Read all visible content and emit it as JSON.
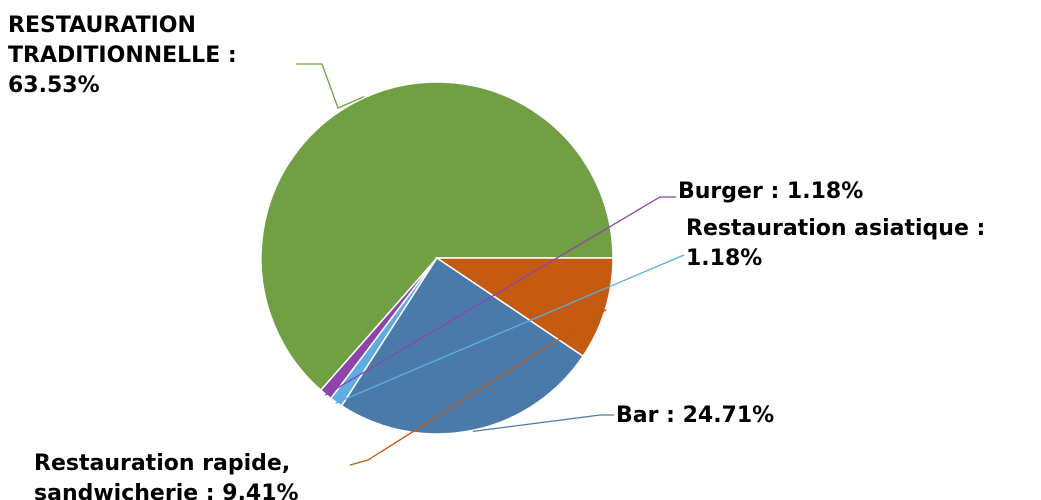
{
  "chart_data": {
    "type": "pie",
    "title": "",
    "legend": "none",
    "slices": [
      {
        "name": "RESTAURATION TRADITIONNELLE",
        "value": 63.53,
        "color": "#70a043",
        "label_lines": [
          "RESTAURATION",
          "TRADITIONNELLE :",
          "63.53%"
        ]
      },
      {
        "name": "Burger",
        "value": 1.18,
        "color": "#8e44ad",
        "label_lines": [
          "Burger : 1.18%"
        ]
      },
      {
        "name": "Restauration asiatique",
        "value": 1.18,
        "color": "#5dade2",
        "label_lines": [
          "Restauration asiatique :",
          "1.18%"
        ]
      },
      {
        "name": "Bar",
        "value": 24.71,
        "color": "#4a7aaa",
        "label_lines": [
          "Bar : 24.71%"
        ]
      },
      {
        "name": "Restauration rapide, sandwicherie",
        "value": 9.41,
        "color": "#c55a11",
        "label_lines": [
          "Restauration rapide,",
          "sandwicherie : 9.41%"
        ]
      }
    ]
  }
}
